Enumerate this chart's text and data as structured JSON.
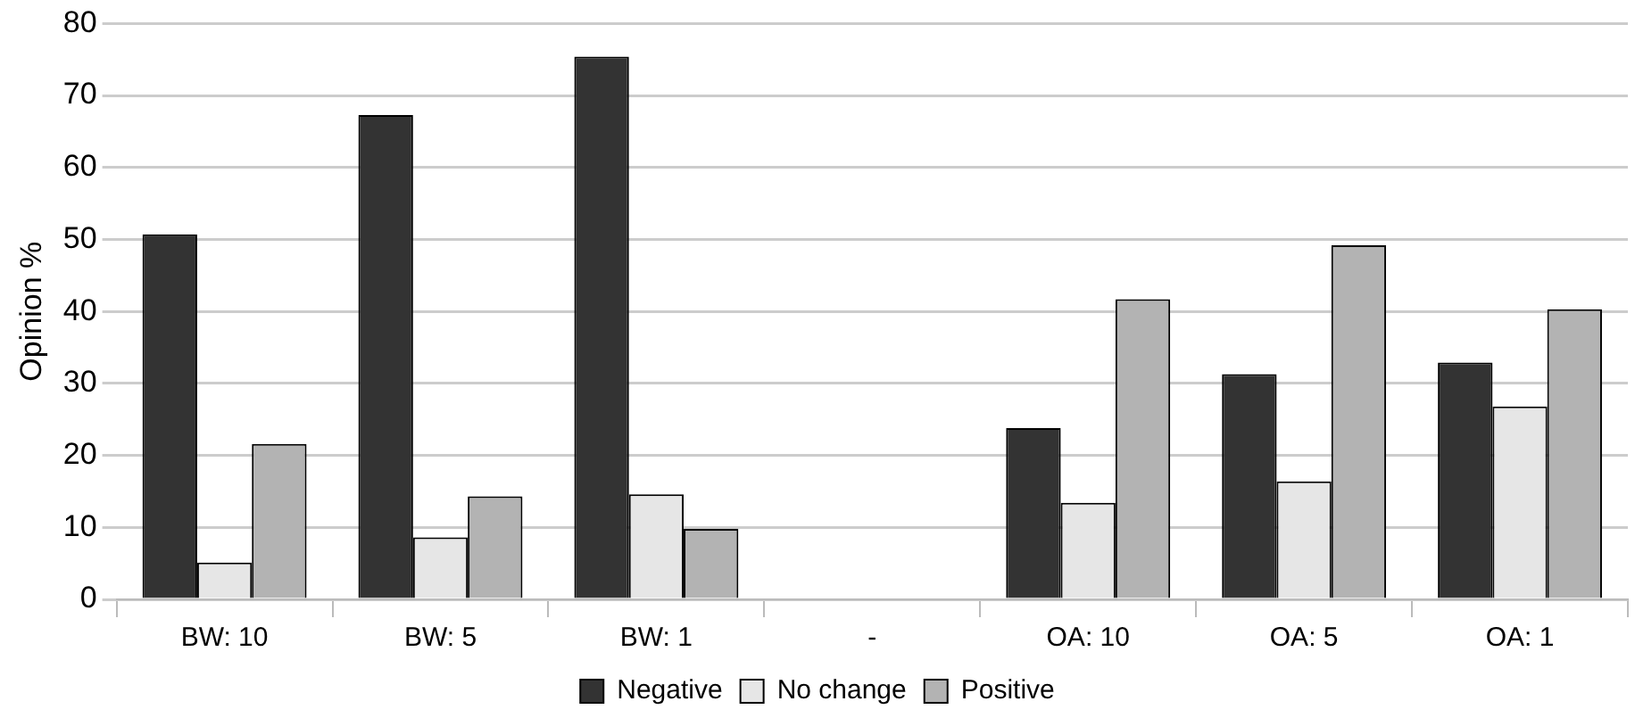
{
  "chart_data": {
    "type": "bar",
    "ylabel": "Opinion %",
    "categories": [
      "BW: 10",
      "BW: 5",
      "BW: 1",
      "-",
      "OA: 10",
      "OA: 5",
      "OA: 1"
    ],
    "series": [
      {
        "name": "Negative",
        "color": "#333333",
        "values": [
          50.7,
          67.3,
          75.4,
          null,
          23.8,
          31.3,
          32.9
        ]
      },
      {
        "name": "No change",
        "color": "#e6e6e6",
        "values": [
          5.1,
          8.6,
          14.6,
          null,
          13.4,
          16.4,
          26.8
        ]
      },
      {
        "name": "Positive",
        "color": "#b3b3b3",
        "values": [
          21.6,
          14.3,
          9.8,
          null,
          41.7,
          49.2,
          40.3
        ]
      }
    ],
    "ylim": [
      0,
      80
    ],
    "yticks": [
      0,
      10,
      20,
      30,
      40,
      50,
      60,
      70,
      80
    ],
    "grid": "y",
    "legend": "bottom"
  }
}
